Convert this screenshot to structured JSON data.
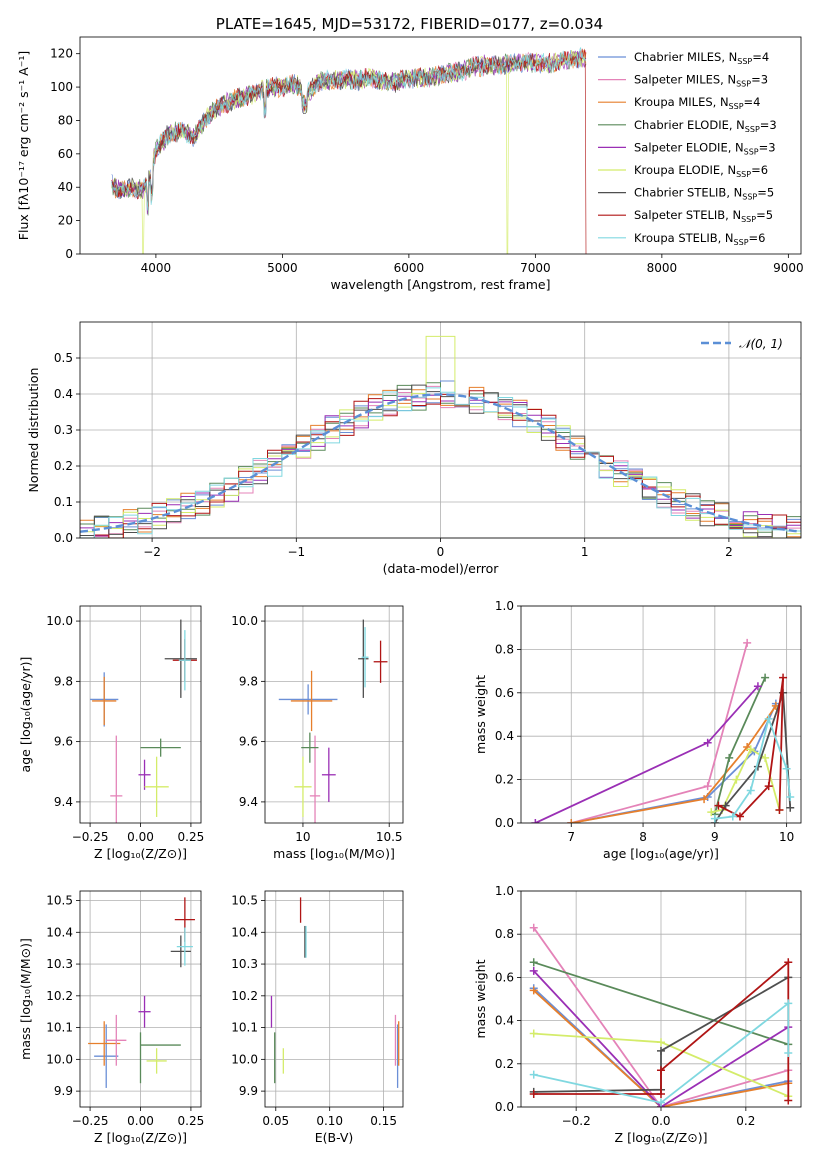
{
  "colors": {
    "chab_miles": "#6b8fd6",
    "salp_miles": "#e483b8",
    "krou_miles": "#e67f2c",
    "chab_elodie": "#5a8a5a",
    "salp_elodie": "#9a2fb5",
    "krou_elodie": "#d4ec6a",
    "chab_stelib": "#4f4f4f",
    "salp_stelib": "#b01515",
    "krou_stelib": "#80d8e0",
    "normal": "#5b8fd6"
  },
  "chart_data": [
    {
      "id": "spectrum",
      "type": "line",
      "title": "PLATE=1645, MJD=53172, FIBERID=0177, z=0.034",
      "xlabel": "wavelength [Angstrom, rest frame]",
      "ylabel": "Flux [fλ10⁻¹⁷ erg cm⁻² s⁻¹ A⁻¹]",
      "xlim": [
        3400,
        9100
      ],
      "ylim": [
        0,
        130
      ],
      "xticks": [
        "4000",
        "5000",
        "6000",
        "7000",
        "8000",
        "9000"
      ],
      "yticks": [
        "0",
        "20",
        "40",
        "60",
        "80",
        "100",
        "120"
      ],
      "grid": false,
      "legend": "upper-right",
      "legend_entries": [
        "Chabrier MILES, N_SSP=4",
        "Salpeter MILES, N_SSP=3",
        "Kroupa MILES, N_SSP=4",
        "Chabrier ELODIE, N_SSP=3",
        "Salpeter ELODIE, N_SSP=3",
        "Kroupa ELODIE, N_SSP=6",
        "Chabrier STELIB, N_SSP=5",
        "Salpeter STELIB, N_SSP=5",
        "Kroupa STELIB, N_SSP=6"
      ],
      "continuum": {
        "x": [
          3650,
          3700,
          3800,
          3900,
          3950,
          4000,
          4100,
          4200,
          4300,
          4400,
          4500,
          4600,
          4700,
          4800,
          4900,
          5000,
          5100,
          5200,
          5300,
          5400,
          5500,
          5600,
          5700,
          5800,
          5900,
          6000,
          6100,
          6200,
          6300,
          6400,
          6500,
          6600,
          6700,
          6800,
          6900,
          7000,
          7100,
          7200,
          7300,
          7400,
          7420
        ],
        "y": [
          42,
          38,
          40,
          38,
          45,
          62,
          72,
          74,
          70,
          82,
          88,
          92,
          94,
          97,
          100,
          100,
          102,
          96,
          104,
          104,
          105,
          104,
          106,
          103,
          103,
          105,
          106,
          106,
          108,
          109,
          112,
          113,
          113,
          114,
          115,
          115,
          114,
          116,
          117,
          118,
          110
        ]
      }
    },
    {
      "id": "residuals",
      "type": "histogram",
      "xlabel": "(data-model)/error",
      "ylabel": "Normed distribution",
      "xlim": [
        -2.5,
        2.5
      ],
      "ylim": [
        0,
        0.6
      ],
      "xticks": [
        "−2",
        "−1",
        "0",
        "1",
        "2"
      ],
      "yticks": [
        "0.0",
        "0.1",
        "0.2",
        "0.3",
        "0.4",
        "0.5"
      ],
      "grid": true,
      "legend": "upper-right",
      "legend_entries": [
        "𝒩(0, 1)"
      ],
      "bin_width": 0.1,
      "spike": {
        "x": 0.0,
        "y": 0.56
      }
    },
    {
      "id": "age_Z",
      "type": "errorbar",
      "xlabel": "Z [log₁₀(Z/Z⊙)]",
      "ylabel": "age  [log₁₀(age/yr)]",
      "xlim": [
        -0.3,
        0.3
      ],
      "ylim": [
        9.33,
        10.05
      ],
      "xticks": [
        {
          "v": -0.25,
          "l": "−0.25"
        },
        {
          "v": 0,
          "l": "0.00"
        },
        {
          "v": 0.25,
          "l": "0.25"
        }
      ],
      "yticks": [
        {
          "v": 9.4,
          "l": "9.4"
        },
        {
          "v": 9.6,
          "l": "9.6"
        },
        {
          "v": 9.8,
          "l": "9.8"
        },
        {
          "v": 10.0,
          "l": "10.0"
        }
      ],
      "grid": true,
      "points": [
        {
          "k": "chab_miles",
          "x": -0.18,
          "xe": 0.07,
          "y": 9.74,
          "ye": 0.09
        },
        {
          "k": "krou_miles",
          "x": -0.18,
          "xe": 0.06,
          "y": 9.735,
          "ye": 0.08
        },
        {
          "k": "salp_miles",
          "x": -0.12,
          "xe": 0.03,
          "y": 9.42,
          "ye": 0.2
        },
        {
          "k": "chab_elodie",
          "x": 0.1,
          "xe": 0.1,
          "y": 9.58,
          "ye": 0.03
        },
        {
          "k": "salp_elodie",
          "x": 0.02,
          "xe": 0.03,
          "y": 9.49,
          "ye": 0.05
        },
        {
          "k": "krou_elodie",
          "x": 0.08,
          "xe": 0.06,
          "y": 9.45,
          "ye": 0.1
        },
        {
          "k": "chab_stelib",
          "x": 0.2,
          "xe": 0.08,
          "y": 9.875,
          "ye": 0.13
        },
        {
          "k": "salp_stelib",
          "x": 0.22,
          "xe": 0.06,
          "y": 9.87,
          "ye": 0.07
        },
        {
          "k": "krou_stelib",
          "x": 0.22,
          "xe": 0.03,
          "y": 9.87,
          "ye": 0.1
        }
      ]
    },
    {
      "id": "age_mass",
      "type": "errorbar",
      "xlabel": "mass [log₁₀(M/M⊙)]",
      "ylabel": "",
      "xlim": [
        9.78,
        10.58
      ],
      "ylim": [
        9.33,
        10.05
      ],
      "xticks": [
        {
          "v": 10,
          "l": "10"
        },
        {
          "v": 10.5,
          "l": "10.5"
        }
      ],
      "yticks": [
        {
          "v": 9.4,
          "l": "9.4"
        },
        {
          "v": 9.6,
          "l": "9.6"
        },
        {
          "v": 9.8,
          "l": "9.8"
        },
        {
          "v": 10.0,
          "l": "10.0"
        }
      ],
      "grid": true,
      "points": [
        {
          "k": "chab_miles",
          "x": 10.03,
          "xe": 0.17,
          "y": 9.74,
          "ye": 0.05
        },
        {
          "k": "krou_miles",
          "x": 10.05,
          "xe": 0.12,
          "y": 9.735,
          "ye": 0.1
        },
        {
          "k": "salp_miles",
          "x": 10.07,
          "xe": 0.03,
          "y": 9.42,
          "ye": 0.2
        },
        {
          "k": "chab_elodie",
          "x": 10.04,
          "xe": 0.05,
          "y": 9.58,
          "ye": 0.05
        },
        {
          "k": "salp_elodie",
          "x": 10.15,
          "xe": 0.04,
          "y": 9.49,
          "ye": 0.09
        },
        {
          "k": "krou_elodie",
          "x": 10.0,
          "xe": 0.05,
          "y": 9.45,
          "ye": 0.1
        },
        {
          "k": "chab_stelib",
          "x": 10.35,
          "xe": 0.03,
          "y": 9.875,
          "ye": 0.13
        },
        {
          "k": "salp_stelib",
          "x": 10.45,
          "xe": 0.04,
          "y": 9.865,
          "ye": 0.07
        },
        {
          "k": "krou_stelib",
          "x": 10.36,
          "xe": 0.02,
          "y": 9.88,
          "ye": 0.1
        }
      ]
    },
    {
      "id": "weight_age",
      "type": "line",
      "xlabel": "age  [log₁₀(age/yr)]",
      "ylabel": "mass weight",
      "xlim": [
        6.3,
        10.2
      ],
      "ylim": [
        0,
        1
      ],
      "xticks": [
        {
          "v": 7,
          "l": "7"
        },
        {
          "v": 8,
          "l": "8"
        },
        {
          "v": 9,
          "l": "9"
        },
        {
          "v": 10,
          "l": "10"
        }
      ],
      "yticks": [
        {
          "v": 0,
          "l": "0.0"
        },
        {
          "v": 0.2,
          "l": "0.2"
        },
        {
          "v": 0.4,
          "l": "0.4"
        },
        {
          "v": 0.6,
          "l": "0.6"
        },
        {
          "v": 0.8,
          "l": "0.8"
        },
        {
          "v": 1,
          "l": "1.0"
        }
      ],
      "grid": true,
      "series": [
        {
          "k": "chab_miles",
          "x": [
            7.0,
            8.9,
            9.55,
            9.85
          ],
          "y": [
            0.0,
            0.12,
            0.33,
            0.55
          ]
        },
        {
          "k": "salp_miles",
          "x": [
            7.0,
            8.9,
            9.45
          ],
          "y": [
            0.0,
            0.17,
            0.83
          ]
        },
        {
          "k": "krou_miles",
          "x": [
            7.0,
            8.85,
            9.45,
            9.85
          ],
          "y": [
            0.0,
            0.11,
            0.35,
            0.54
          ]
        },
        {
          "k": "chab_elodie",
          "x": [
            9.0,
            9.2,
            9.7
          ],
          "y": [
            0.04,
            0.3,
            0.67
          ]
        },
        {
          "k": "salp_elodie",
          "x": [
            6.5,
            8.9,
            9.6
          ],
          "y": [
            0.0,
            0.37,
            0.63
          ]
        },
        {
          "k": "krou_elodie",
          "x": [
            8.95,
            9.1,
            9.3,
            9.5,
            9.7,
            9.9
          ],
          "y": [
            0.05,
            0.06,
            0.2,
            0.34,
            0.3,
            0.06
          ]
        },
        {
          "k": "chab_stelib",
          "x": [
            9.0,
            9.15,
            9.6,
            9.95,
            10.05
          ],
          "y": [
            0.0,
            0.08,
            0.26,
            0.6,
            0.07
          ]
        },
        {
          "k": "salp_stelib",
          "x": [
            9.05,
            9.35,
            9.75,
            9.95,
            9.9
          ],
          "y": [
            0.08,
            0.03,
            0.17,
            0.67,
            0.06
          ]
        },
        {
          "k": "krou_stelib",
          "x": [
            9.0,
            9.25,
            9.5,
            9.75,
            10.0,
            10.05
          ],
          "y": [
            0.02,
            0.03,
            0.15,
            0.48,
            0.25,
            0.12
          ]
        }
      ]
    },
    {
      "id": "mass_Z",
      "type": "errorbar",
      "xlabel": "Z [log₁₀(Z/Z⊙)]",
      "ylabel": "mass [log₁₀(M/M⊙)]",
      "xlim": [
        -0.3,
        0.3
      ],
      "ylim": [
        9.85,
        10.53
      ],
      "xticks": [
        {
          "v": -0.25,
          "l": "−0.25"
        },
        {
          "v": 0,
          "l": "0.00"
        },
        {
          "v": 0.25,
          "l": "0.25"
        }
      ],
      "yticks": [
        {
          "v": 9.9,
          "l": "9.9"
        },
        {
          "v": 10.0,
          "l": "10.0"
        },
        {
          "v": 10.1,
          "l": "10.1"
        },
        {
          "v": 10.2,
          "l": "10.2"
        },
        {
          "v": 10.3,
          "l": "10.3"
        },
        {
          "v": 10.4,
          "l": "10.4"
        },
        {
          "v": 10.5,
          "l": "10.5"
        }
      ],
      "grid": true,
      "points": [
        {
          "k": "chab_miles",
          "x": -0.17,
          "xe": 0.06,
          "y": 10.01,
          "ye": 0.1
        },
        {
          "k": "krou_miles",
          "x": -0.18,
          "xe": 0.08,
          "y": 10.05,
          "ye": 0.07
        },
        {
          "k": "salp_miles",
          "x": -0.12,
          "xe": 0.05,
          "y": 10.06,
          "ye": 0.08
        },
        {
          "k": "chab_elodie",
          "x": 0.1,
          "xe": 0.1,
          "y": 10.045,
          "ye": 0.0
        },
        {
          "k": "chab_elodie",
          "x": 0.0,
          "xe": 0.0,
          "y": 10.005,
          "ye": 0.08
        },
        {
          "k": "salp_elodie",
          "x": 0.02,
          "xe": 0.03,
          "y": 10.15,
          "ye": 0.05
        },
        {
          "k": "krou_elodie",
          "x": 0.08,
          "xe": 0.05,
          "y": 9.995,
          "ye": 0.04
        },
        {
          "k": "chab_stelib",
          "x": 0.2,
          "xe": 0.05,
          "y": 10.34,
          "ye": 0.05
        },
        {
          "k": "salp_stelib",
          "x": 0.22,
          "xe": 0.05,
          "y": 10.44,
          "ye": 0.07
        },
        {
          "k": "krou_stelib",
          "x": 0.22,
          "xe": 0.04,
          "y": 10.355,
          "ye": 0.06
        }
      ]
    },
    {
      "id": "mass_ebv",
      "type": "errorbar",
      "xlabel": "E(B-V)",
      "ylabel": "",
      "xlim": [
        0.04,
        0.168
      ],
      "ylim": [
        9.85,
        10.53
      ],
      "xticks": [
        {
          "v": 0.05,
          "l": "0.05"
        },
        {
          "v": 0.1,
          "l": "0.10"
        },
        {
          "v": 0.15,
          "l": "0.15"
        }
      ],
      "yticks": [
        {
          "v": 9.9,
          "l": "9.9"
        },
        {
          "v": 10.0,
          "l": "10.0"
        },
        {
          "v": 10.1,
          "l": "10.1"
        },
        {
          "v": 10.2,
          "l": "10.2"
        },
        {
          "v": 10.3,
          "l": "10.3"
        },
        {
          "v": 10.4,
          "l": "10.4"
        },
        {
          "v": 10.5,
          "l": "10.5"
        }
      ],
      "grid": true,
      "points": [
        {
          "k": "chab_miles",
          "x": 0.163,
          "xe": 0.0,
          "y": 10.01,
          "ye": 0.1
        },
        {
          "k": "krou_miles",
          "x": 0.164,
          "xe": 0.0,
          "y": 10.05,
          "ye": 0.07
        },
        {
          "k": "salp_miles",
          "x": 0.161,
          "xe": 0.0,
          "y": 10.06,
          "ye": 0.08
        },
        {
          "k": "chab_elodie",
          "x": 0.049,
          "xe": 0.0,
          "y": 10.005,
          "ye": 0.08
        },
        {
          "k": "salp_elodie",
          "x": 0.046,
          "xe": 0.0,
          "y": 10.15,
          "ye": 0.05
        },
        {
          "k": "krou_elodie",
          "x": 0.057,
          "xe": 0.0,
          "y": 9.995,
          "ye": 0.04
        },
        {
          "k": "chab_stelib",
          "x": 0.077,
          "xe": 0.0,
          "y": 10.37,
          "ye": 0.05
        },
        {
          "k": "salp_stelib",
          "x": 0.073,
          "xe": 0.0,
          "y": 10.47,
          "ye": 0.04
        },
        {
          "k": "krou_stelib",
          "x": 0.078,
          "xe": 0.0,
          "y": 10.37,
          "ye": 0.05
        }
      ]
    },
    {
      "id": "weight_Z",
      "type": "line",
      "xlabel": "Z [log₁₀(Z/Z⊙)]",
      "ylabel": "mass weight",
      "xlim": [
        -0.33,
        0.33
      ],
      "ylim": [
        0,
        1
      ],
      "xticks": [
        {
          "v": -0.2,
          "l": "−0.2"
        },
        {
          "v": 0,
          "l": "0.0"
        },
        {
          "v": 0.2,
          "l": "0.2"
        }
      ],
      "yticks": [
        {
          "v": 0,
          "l": "0.0"
        },
        {
          "v": 0.2,
          "l": "0.2"
        },
        {
          "v": 0.4,
          "l": "0.4"
        },
        {
          "v": 0.6,
          "l": "0.6"
        },
        {
          "v": 0.8,
          "l": "0.8"
        },
        {
          "v": 1,
          "l": "1.0"
        }
      ],
      "grid": true,
      "series": [
        {
          "k": "chab_miles",
          "x": [
            -0.3,
            0.0,
            0.3
          ],
          "y": [
            0.55,
            0.0,
            0.12
          ]
        },
        {
          "k": "salp_miles",
          "x": [
            -0.3,
            0.0,
            0.3
          ],
          "y": [
            0.83,
            0.0,
            0.17
          ]
        },
        {
          "k": "krou_miles",
          "x": [
            -0.3,
            0.0,
            0.3
          ],
          "y": [
            0.54,
            0.0,
            0.11
          ]
        },
        {
          "k": "chab_elodie",
          "x": [
            -0.3,
            0.3
          ],
          "y": [
            0.67,
            0.29
          ]
        },
        {
          "k": "salp_elodie",
          "x": [
            -0.3,
            0.0,
            0.3
          ],
          "y": [
            0.63,
            0.0,
            0.37
          ]
        },
        {
          "k": "krou_elodie",
          "x": [
            -0.3,
            0.0,
            0.3
          ],
          "y": [
            0.34,
            0.3,
            0.05
          ]
        },
        {
          "k": "chab_stelib",
          "x": [
            -0.3,
            0.0,
            0.0,
            0.3
          ],
          "y": [
            0.07,
            0.08,
            0.26,
            0.6
          ]
        },
        {
          "k": "salp_stelib",
          "x": [
            -0.3,
            0.0,
            0.0,
            0.3,
            0.3
          ],
          "y": [
            0.06,
            0.06,
            0.17,
            0.67,
            0.03
          ]
        },
        {
          "k": "krou_stelib",
          "x": [
            -0.3,
            0.0,
            0.3,
            0.3
          ],
          "y": [
            0.15,
            0.02,
            0.48,
            0.25
          ]
        }
      ]
    }
  ]
}
